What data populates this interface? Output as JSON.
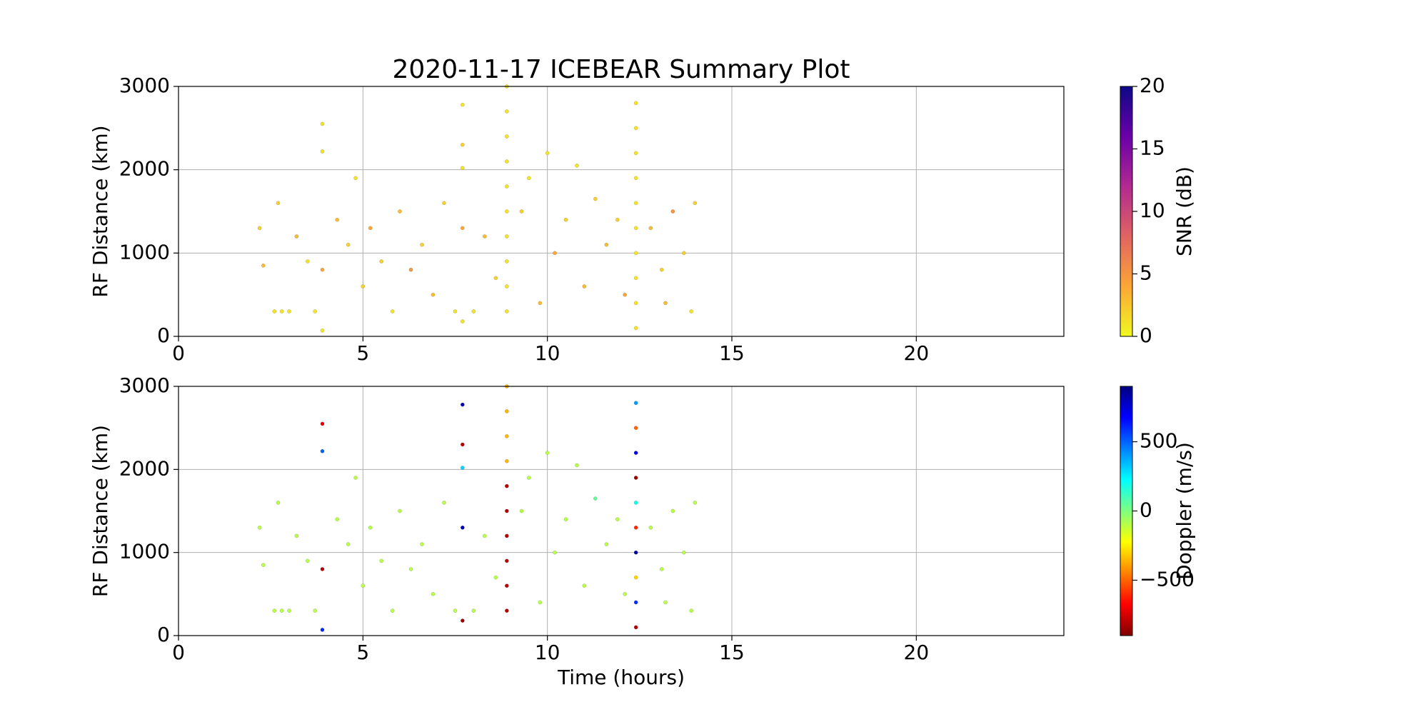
{
  "chart_data": [
    {
      "type": "scatter",
      "title": "2020-11-17 ICEBEAR Summary Plot",
      "ylabel": "RF Distance (km)",
      "colorbar_label": "SNR (dB)",
      "x": [
        2.2,
        2.3,
        2.6,
        2.8,
        3.0,
        2.7,
        3.2,
        3.5,
        3.9,
        3.9,
        3.9,
        3.9,
        3.7,
        4.3,
        4.6,
        4.8,
        5.0,
        5.2,
        5.5,
        5.8,
        6.0,
        6.3,
        6.6,
        6.9,
        7.2,
        7.5,
        7.7,
        7.7,
        7.7,
        7.7,
        7.7,
        8.0,
        8.3,
        8.6,
        9.3,
        9.5,
        9.8,
        10.0,
        10.2,
        10.5,
        10.8,
        11.0,
        11.3,
        11.6,
        11.9,
        12.1,
        12.8,
        13.1,
        13.4,
        13.7,
        13.9,
        14.0,
        13.2,
        8.9,
        8.9,
        8.9,
        8.9,
        8.9,
        8.9,
        8.9,
        8.9,
        8.9,
        8.9,
        12.4,
        12.4,
        12.4,
        12.4,
        12.4,
        12.4,
        12.4,
        12.4,
        12.4,
        12.4
      ],
      "values": [
        1300,
        850,
        300,
        300,
        300,
        1600,
        1200,
        900,
        2550,
        2220,
        800,
        70,
        300,
        1400,
        1100,
        1900,
        600,
        1300,
        900,
        300,
        1500,
        800,
        1100,
        500,
        1600,
        300,
        2780,
        2300,
        2020,
        1300,
        180,
        300,
        1200,
        700,
        1500,
        1900,
        400,
        2200,
        1000,
        1400,
        2050,
        600,
        1650,
        1100,
        1400,
        500,
        1300,
        800,
        1500,
        1000,
        300,
        1600,
        400,
        300,
        600,
        900,
        1200,
        1500,
        1800,
        2100,
        2400,
        2700,
        3000,
        100,
        400,
        700,
        1000,
        1300,
        1600,
        1900,
        2200,
        2500,
        2800
      ],
      "color_values": [
        2,
        3,
        1,
        1,
        1,
        2,
        3,
        1,
        1,
        1,
        4,
        1,
        1,
        3,
        2,
        1,
        2,
        4,
        2,
        1,
        3,
        5,
        2,
        3,
        2,
        1,
        1,
        2,
        1,
        4,
        1,
        1,
        3,
        2,
        2,
        1,
        3,
        1,
        4,
        2,
        1,
        3,
        2,
        3,
        2,
        4,
        3,
        2,
        5,
        2,
        1,
        2,
        3,
        1,
        1,
        1,
        1,
        1,
        1,
        1,
        1,
        1,
        1,
        1,
        1,
        1,
        1,
        1,
        1,
        1,
        1,
        1,
        1
      ],
      "xlim": [
        0,
        24
      ],
      "ylim": [
        0,
        3000
      ],
      "xticks": [
        0,
        5,
        10,
        15,
        20
      ],
      "yticks": [
        0,
        1000,
        2000,
        3000
      ],
      "grid": true,
      "clim": [
        0,
        20
      ],
      "cticks": [
        0,
        5,
        10,
        15,
        20
      ],
      "colormap": [
        "#f0f921",
        "#fca636",
        "#e16462",
        "#b12a90",
        "#6a00a8",
        "#0d0887"
      ]
    },
    {
      "type": "scatter",
      "ylabel": "RF Distance (km)",
      "xlabel": "Time (hours)",
      "colorbar_label": "Doppler (m/s)",
      "x": [
        2.2,
        2.3,
        2.6,
        2.8,
        3.0,
        2.7,
        3.2,
        3.5,
        3.9,
        3.9,
        3.9,
        3.9,
        3.7,
        4.3,
        4.6,
        4.8,
        5.0,
        5.2,
        5.5,
        5.8,
        6.0,
        6.3,
        6.6,
        6.9,
        7.2,
        7.5,
        7.7,
        7.7,
        7.7,
        7.7,
        7.7,
        8.0,
        8.3,
        8.6,
        9.3,
        9.5,
        9.8,
        10.0,
        10.2,
        10.5,
        10.8,
        11.0,
        11.3,
        11.6,
        11.9,
        12.1,
        12.8,
        13.1,
        13.4,
        13.7,
        13.9,
        14.0,
        13.2,
        8.9,
        8.9,
        8.9,
        8.9,
        8.9,
        8.9,
        8.9,
        8.9,
        8.9,
        8.9,
        12.4,
        12.4,
        12.4,
        12.4,
        12.4,
        12.4,
        12.4,
        12.4,
        12.4,
        12.4
      ],
      "values": [
        1300,
        850,
        300,
        300,
        300,
        1600,
        1200,
        900,
        2550,
        2220,
        800,
        70,
        300,
        1400,
        1100,
        1900,
        600,
        1300,
        900,
        300,
        1500,
        800,
        1100,
        500,
        1600,
        300,
        2780,
        2300,
        2020,
        1300,
        180,
        300,
        1200,
        700,
        1500,
        1900,
        400,
        2200,
        1000,
        1400,
        2050,
        600,
        1650,
        1100,
        1400,
        500,
        1300,
        800,
        1500,
        1000,
        300,
        1600,
        400,
        300,
        600,
        900,
        1200,
        1500,
        1800,
        2100,
        2400,
        2700,
        3000,
        100,
        400,
        700,
        1000,
        1300,
        1600,
        1900,
        2200,
        2500,
        2800
      ],
      "color_values": [
        -100,
        -100,
        -100,
        -100,
        -100,
        -100,
        -100,
        -100,
        -700,
        500,
        -800,
        600,
        -100,
        -100,
        -100,
        -100,
        -100,
        -100,
        -100,
        -100,
        -100,
        -100,
        -100,
        -100,
        -100,
        -100,
        800,
        -800,
        300,
        800,
        -850,
        -100,
        -100,
        -100,
        -100,
        -100,
        -100,
        -100,
        -100,
        -100,
        -100,
        -100,
        50,
        -100,
        -100,
        -100,
        -100,
        -100,
        -100,
        -100,
        -100,
        -100,
        -100,
        -800,
        -800,
        -800,
        -800,
        -800,
        -800,
        -350,
        -350,
        -350,
        -350,
        -800,
        600,
        -300,
        850,
        -600,
        200,
        -850,
        700,
        -500,
        400
      ],
      "xlim": [
        0,
        24
      ],
      "ylim": [
        0,
        3000
      ],
      "xticks": [
        0,
        5,
        10,
        15,
        20
      ],
      "yticks": [
        0,
        1000,
        2000,
        3000
      ],
      "grid": true,
      "clim": [
        -900,
        900
      ],
      "cticks": [
        {
          "value": -500,
          "label": "−500"
        },
        0,
        500
      ],
      "colormap": [
        "#7f0000",
        "#ff0000",
        "#ff8000",
        "#ffff00",
        "#80ff80",
        "#00ffff",
        "#0080ff",
        "#0000ff",
        "#00007f"
      ]
    }
  ]
}
